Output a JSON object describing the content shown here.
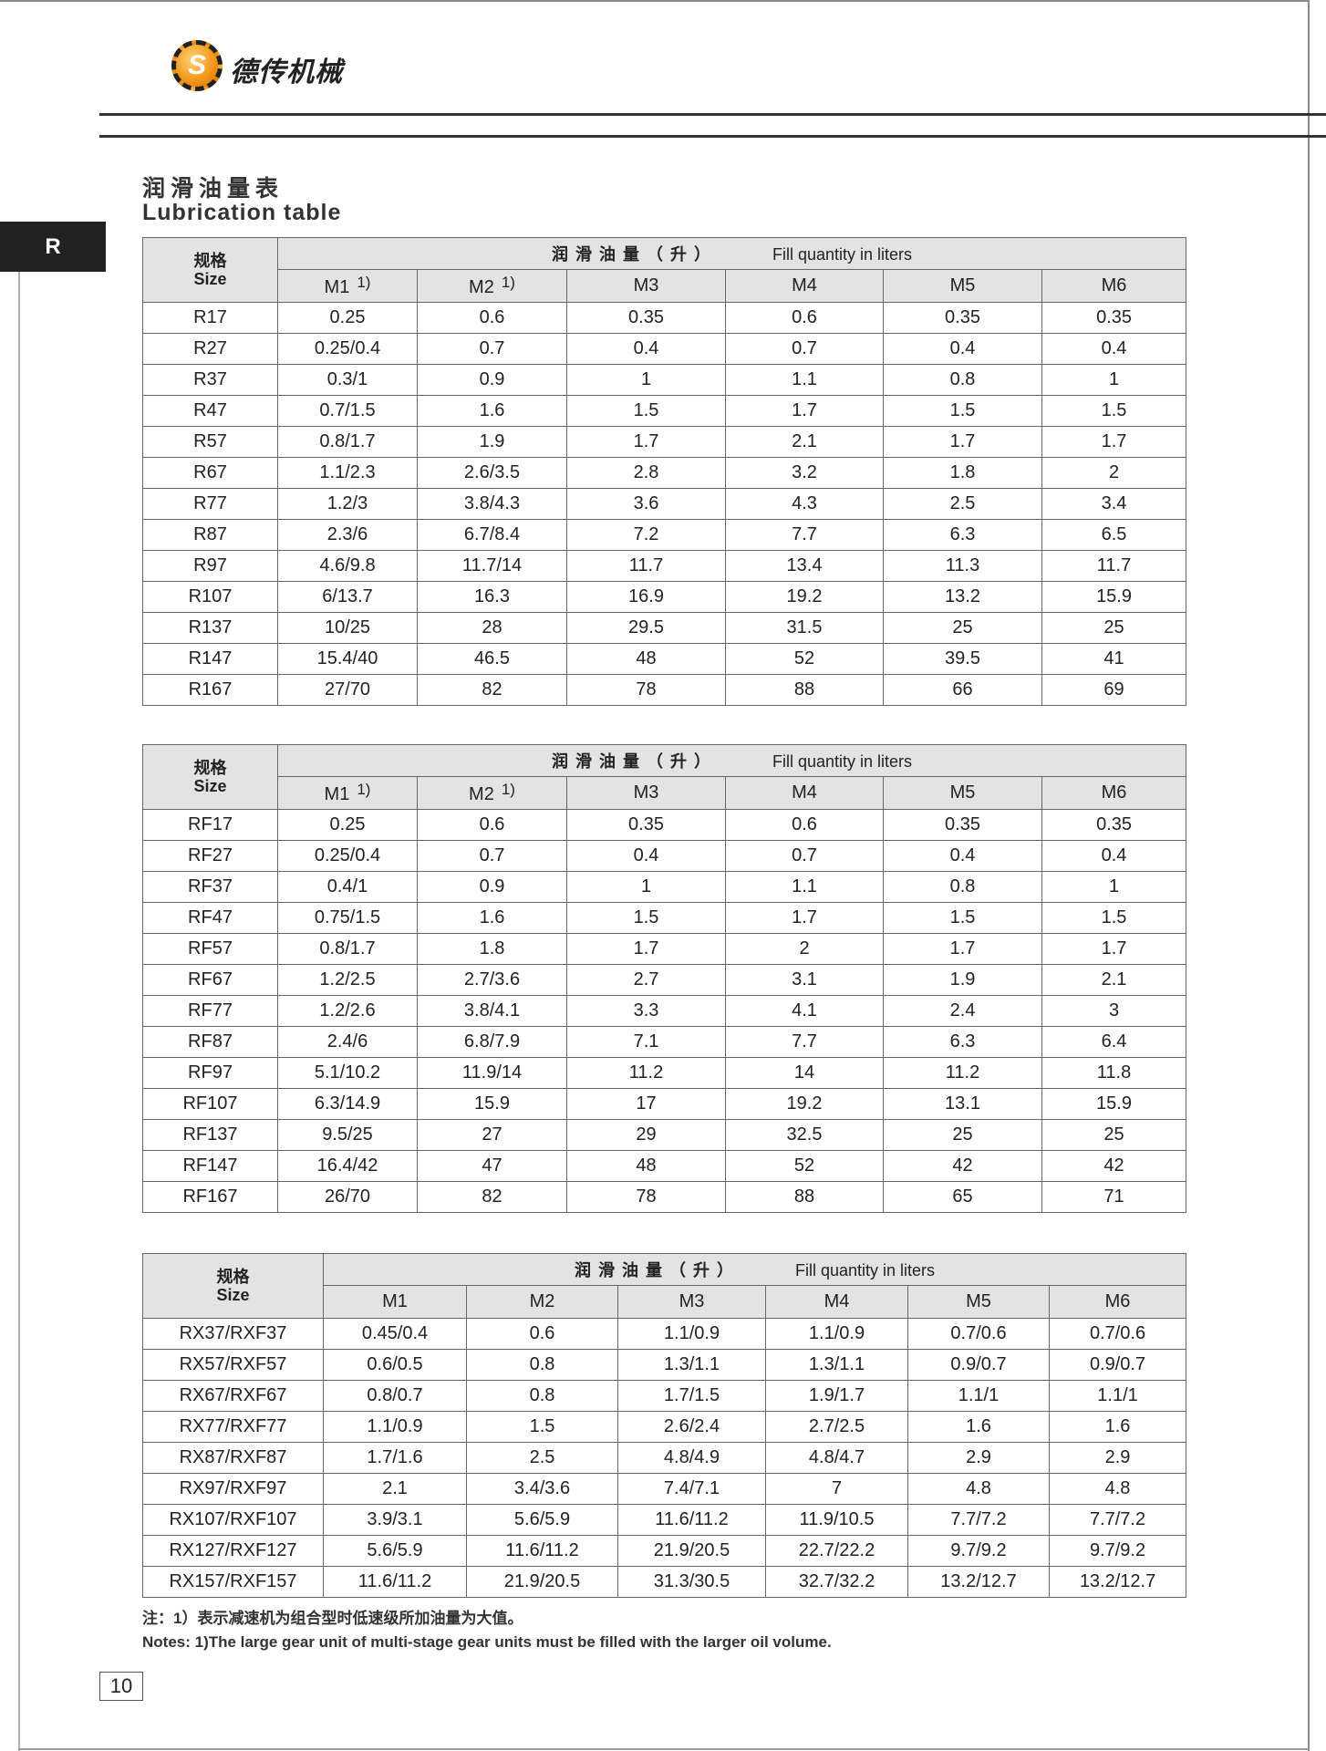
{
  "brand": {
    "logo_letter": "S",
    "name": "德传机械"
  },
  "title": {
    "cn": "润滑油量表",
    "en": "Lubrication table"
  },
  "side_tab": "R",
  "tables": [
    {
      "size_cn": "规格",
      "size_en": "Size",
      "group_cn": "润滑油量（升）",
      "group_en": "Fill quantity in liters",
      "columns": [
        "M1",
        "M2",
        "M3",
        "M4",
        "M5",
        "M6"
      ],
      "column_notes": [
        "1)",
        "1)",
        "",
        "",
        "",
        ""
      ],
      "rows": [
        [
          "R17",
          "0.25",
          "0.6",
          "0.35",
          "0.6",
          "0.35",
          "0.35"
        ],
        [
          "R27",
          "0.25/0.4",
          "0.7",
          "0.4",
          "0.7",
          "0.4",
          "0.4"
        ],
        [
          "R37",
          "0.3/1",
          "0.9",
          "1",
          "1.1",
          "0.8",
          "1"
        ],
        [
          "R47",
          "0.7/1.5",
          "1.6",
          "1.5",
          "1.7",
          "1.5",
          "1.5"
        ],
        [
          "R57",
          "0.8/1.7",
          "1.9",
          "1.7",
          "2.1",
          "1.7",
          "1.7"
        ],
        [
          "R67",
          "1.1/2.3",
          "2.6/3.5",
          "2.8",
          "3.2",
          "1.8",
          "2"
        ],
        [
          "R77",
          "1.2/3",
          "3.8/4.3",
          "3.6",
          "4.3",
          "2.5",
          "3.4"
        ],
        [
          "R87",
          "2.3/6",
          "6.7/8.4",
          "7.2",
          "7.7",
          "6.3",
          "6.5"
        ],
        [
          "R97",
          "4.6/9.8",
          "11.7/14",
          "11.7",
          "13.4",
          "11.3",
          "11.7"
        ],
        [
          "R107",
          "6/13.7",
          "16.3",
          "16.9",
          "19.2",
          "13.2",
          "15.9"
        ],
        [
          "R137",
          "10/25",
          "28",
          "29.5",
          "31.5",
          "25",
          "25"
        ],
        [
          "R147",
          "15.4/40",
          "46.5",
          "48",
          "52",
          "39.5",
          "41"
        ],
        [
          "R167",
          "27/70",
          "82",
          "78",
          "88",
          "66",
          "69"
        ]
      ]
    },
    {
      "size_cn": "规格",
      "size_en": "Size",
      "group_cn": "润滑油量（升）",
      "group_en": "Fill quantity in liters",
      "columns": [
        "M1",
        "M2",
        "M3",
        "M4",
        "M5",
        "M6"
      ],
      "column_notes": [
        "1)",
        "1)",
        "",
        "",
        "",
        ""
      ],
      "rows": [
        [
          "RF17",
          "0.25",
          "0.6",
          "0.35",
          "0.6",
          "0.35",
          "0.35"
        ],
        [
          "RF27",
          "0.25/0.4",
          "0.7",
          "0.4",
          "0.7",
          "0.4",
          "0.4"
        ],
        [
          "RF37",
          "0.4/1",
          "0.9",
          "1",
          "1.1",
          "0.8",
          "1"
        ],
        [
          "RF47",
          "0.75/1.5",
          "1.6",
          "1.5",
          "1.7",
          "1.5",
          "1.5"
        ],
        [
          "RF57",
          "0.8/1.7",
          "1.8",
          "1.7",
          "2",
          "1.7",
          "1.7"
        ],
        [
          "RF67",
          "1.2/2.5",
          "2.7/3.6",
          "2.7",
          "3.1",
          "1.9",
          "2.1"
        ],
        [
          "RF77",
          "1.2/2.6",
          "3.8/4.1",
          "3.3",
          "4.1",
          "2.4",
          "3"
        ],
        [
          "RF87",
          "2.4/6",
          "6.8/7.9",
          "7.1",
          "7.7",
          "6.3",
          "6.4"
        ],
        [
          "RF97",
          "5.1/10.2",
          "11.9/14",
          "11.2",
          "14",
          "11.2",
          "11.8"
        ],
        [
          "RF107",
          "6.3/14.9",
          "15.9",
          "17",
          "19.2",
          "13.1",
          "15.9"
        ],
        [
          "RF137",
          "9.5/25",
          "27",
          "29",
          "32.5",
          "25",
          "25"
        ],
        [
          "RF147",
          "16.4/42",
          "47",
          "48",
          "52",
          "42",
          "42"
        ],
        [
          "RF167",
          "26/70",
          "82",
          "78",
          "88",
          "65",
          "71"
        ]
      ]
    },
    {
      "size_cn": "规格",
      "size_en": "Size",
      "group_cn": "润滑油量（升）",
      "group_en": "Fill quantity in liters",
      "columns": [
        "M1",
        "M2",
        "M3",
        "M4",
        "M5",
        "M6"
      ],
      "column_notes": [
        "",
        "",
        "",
        "",
        "",
        ""
      ],
      "rows": [
        [
          "RX37/RXF37",
          "0.45/0.4",
          "0.6",
          "1.1/0.9",
          "1.1/0.9",
          "0.7/0.6",
          "0.7/0.6"
        ],
        [
          "RX57/RXF57",
          "0.6/0.5",
          "0.8",
          "1.3/1.1",
          "1.3/1.1",
          "0.9/0.7",
          "0.9/0.7"
        ],
        [
          "RX67/RXF67",
          "0.8/0.7",
          "0.8",
          "1.7/1.5",
          "1.9/1.7",
          "1.1/1",
          "1.1/1"
        ],
        [
          "RX77/RXF77",
          "1.1/0.9",
          "1.5",
          "2.6/2.4",
          "2.7/2.5",
          "1.6",
          "1.6"
        ],
        [
          "RX87/RXF87",
          "1.7/1.6",
          "2.5",
          "4.8/4.9",
          "4.8/4.7",
          "2.9",
          "2.9"
        ],
        [
          "RX97/RXF97",
          "2.1",
          "3.4/3.6",
          "7.4/7.1",
          "7",
          "4.8",
          "4.8"
        ],
        [
          "RX107/RXF107",
          "3.9/3.1",
          "5.6/5.9",
          "11.6/11.2",
          "11.9/10.5",
          "7.7/7.2",
          "7.7/7.2"
        ],
        [
          "RX127/RXF127",
          "5.6/5.9",
          "11.6/11.2",
          "21.9/20.5",
          "22.7/22.2",
          "9.7/9.2",
          "9.7/9.2"
        ],
        [
          "RX157/RXF157",
          "11.6/11.2",
          "21.9/20.5",
          "31.3/30.5",
          "32.7/32.2",
          "13.2/12.7",
          "13.2/12.7"
        ]
      ]
    }
  ],
  "notes": {
    "cn": "注：1）表示减速机为组合型时低速级所加油量为大值。",
    "en": "Notes: 1)The large gear unit of multi-stage gear units must be filled with the larger oil volume."
  },
  "page_number": "10"
}
